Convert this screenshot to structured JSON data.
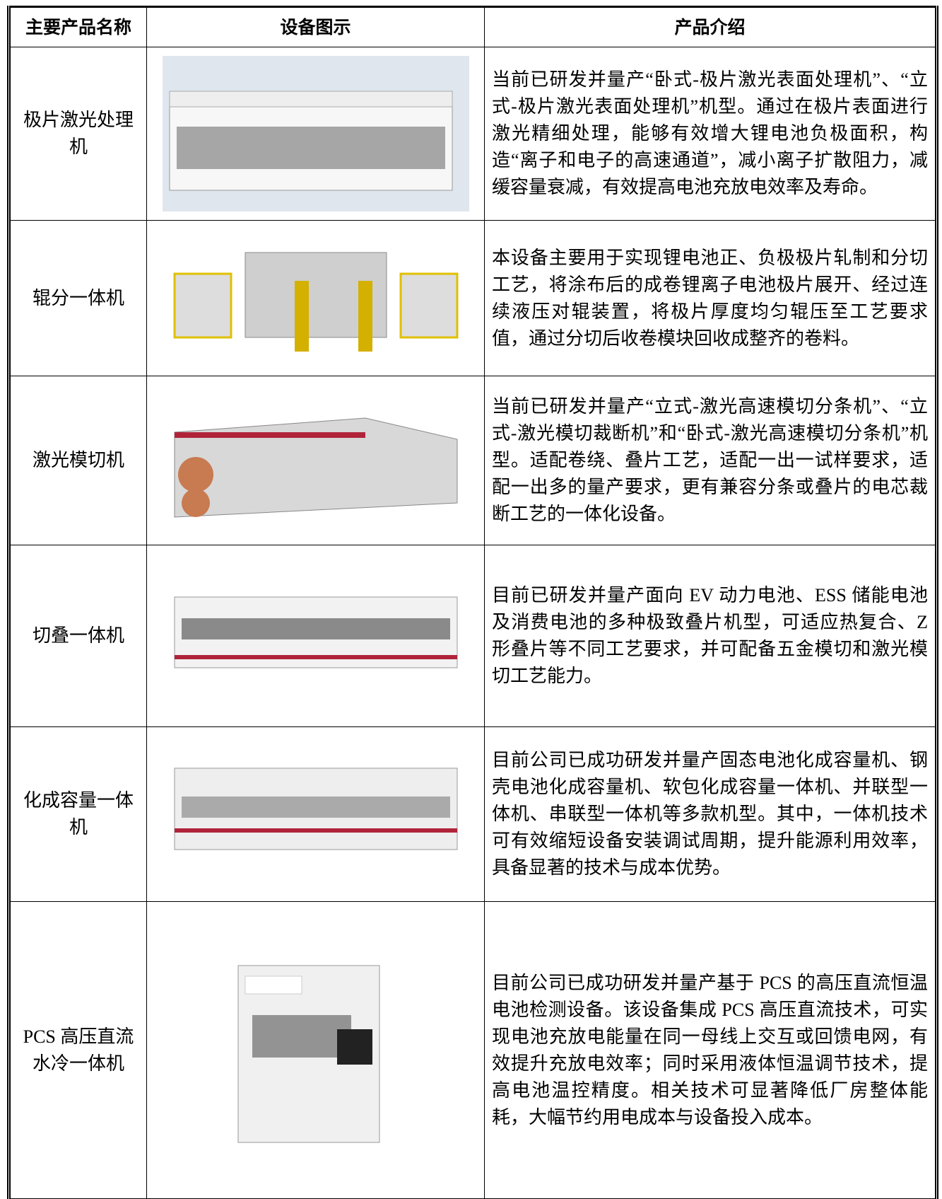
{
  "table": {
    "headers": [
      "主要产品名称",
      "设备图示",
      "产品介绍"
    ],
    "rows": [
      [
        "极片激光处理机",
        "当前已研发并量产“卧式-极片激光表面处理机”、“立式-极片激光表面处理机”机型。通过在极片表面进行激光精细处理，能够有效增大锂电池负极面积，构造“离子和电子的高速通道”，减小离子扩散阻力，减缓容量衰减，有效提高电池充放电效率及寿命。"
      ],
      [
        "辊分一体机",
        "本设备主要用于实现锂电池正、负极极片轧制和分切工艺，将涂布后的成卷锂离子电池极片展开、经过连续液压对辊装置，将极片厚度均匀辊压至工艺要求值，通过分切后收卷模块回收成整齐的卷料。"
      ],
      [
        "激光模切机",
        "当前已研发并量产“立式-激光高速模切分条机”、“立式-激光模切裁断机”和“卧式-激光高速模切分条机”机型。适配卷绕、叠片工艺，适配一出一试样要求，适配一出多的量产要求，更有兼容分条或叠片的电芯裁断工艺的一体化设备。"
      ],
      [
        "切叠一体机",
        "目前已研发并量产面向 EV 动力电池、ESS 储能电池及消费电池的多种极致叠片机型，可适应热复合、Z 形叠片等不同工艺要求，并可配备五金模切和激光模切工艺能力。"
      ],
      [
        "化成容量一体机",
        "目前公司已成功研发并量产固态电池化成容量机、钢壳电池化成容量机、软包化成容量一体机、并联型一体机、串联型一体机等多款机型。其中，一体机技术可有效缩短设备安装调试周期，提升能源利用效率，具备显著的技术与成本优势。"
      ],
      [
        "PCS 高压直流水冷一体机",
        "目前公司已成功研发并量产基于 PCS 的高压直流恒温电池检测设备。该设备集成 PCS 高压直流技术，可实现电池充放电能量在同一母线上交互或回馈电网，有效提升充放电效率；同时采用液体恒温调节技术，提高电池温控精度。相关技术可显著降低厂房整体能耗，大幅节约用电成本与设备投入成本。"
      ]
    ]
  }
}
